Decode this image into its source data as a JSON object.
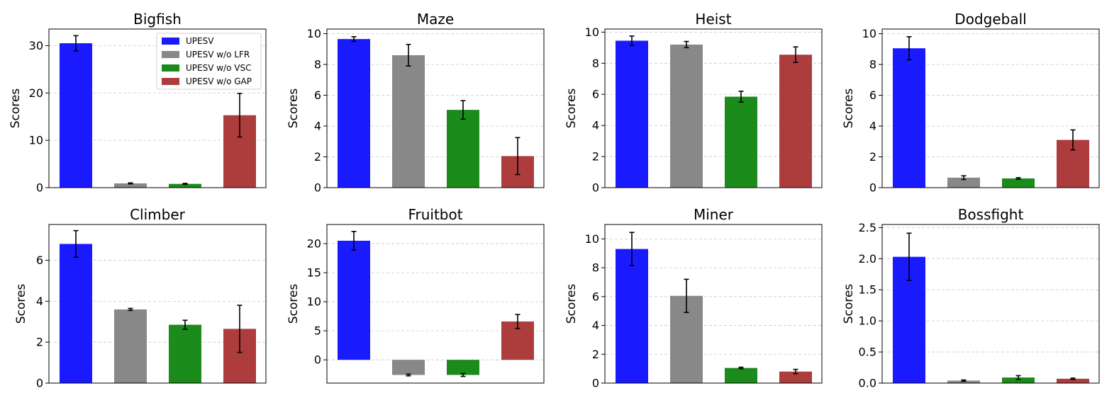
{
  "colors": {
    "upesv": "#1a1aff",
    "no_lfr": "#888888",
    "no_vsc": "#1b8b1b",
    "no_gap": "#ad3c3c",
    "grid": "#c8c8c8",
    "axis": "#000000"
  },
  "legend": {
    "entries": [
      "UPESV",
      "UPESV w/o LFR",
      "UPESV w/o VSC",
      "UPESV w/o GAP"
    ],
    "placement": "top-right",
    "panel": "Bigfish"
  },
  "chart_data": [
    {
      "type": "bar",
      "title": "Bigfish",
      "ylabel": "Scores",
      "series_names": [
        "UPESV",
        "UPESV w/o LFR",
        "UPESV w/o VSC",
        "UPESV w/o GAP"
      ],
      "values": [
        30.5,
        0.9,
        0.8,
        15.3
      ],
      "errors": [
        1.6,
        0.1,
        0.1,
        4.6
      ],
      "ylim": [
        0,
        33.5
      ],
      "yticks": [
        0,
        10,
        20,
        30
      ],
      "ytick_labels": [
        "0",
        "10",
        "20",
        "30"
      ]
    },
    {
      "type": "bar",
      "title": "Maze",
      "ylabel": "Scores",
      "series_names": [
        "UPESV",
        "UPESV w/o LFR",
        "UPESV w/o VSC",
        "UPESV w/o GAP"
      ],
      "values": [
        9.65,
        8.6,
        5.05,
        2.05
      ],
      "errors": [
        0.15,
        0.7,
        0.6,
        1.2
      ],
      "ylim": [
        0,
        10.3
      ],
      "yticks": [
        0,
        2,
        4,
        6,
        8,
        10
      ],
      "ytick_labels": [
        "0",
        "2",
        "4",
        "6",
        "8",
        "10"
      ]
    },
    {
      "type": "bar",
      "title": "Heist",
      "ylabel": "Scores",
      "series_names": [
        "UPESV",
        "UPESV w/o LFR",
        "UPESV w/o VSC",
        "UPESV w/o GAP"
      ],
      "values": [
        9.45,
        9.2,
        5.85,
        8.55
      ],
      "errors": [
        0.3,
        0.2,
        0.35,
        0.5
      ],
      "ylim": [
        0,
        10.2
      ],
      "yticks": [
        0,
        2,
        4,
        6,
        8,
        10
      ],
      "ytick_labels": [
        "0",
        "2",
        "4",
        "6",
        "8",
        "10"
      ]
    },
    {
      "type": "bar",
      "title": "Dodgeball",
      "ylabel": "Scores",
      "series_names": [
        "UPESV",
        "UPESV w/o LFR",
        "UPESV w/o VSC",
        "UPESV w/o GAP"
      ],
      "values": [
        9.05,
        0.65,
        0.6,
        3.1
      ],
      "errors": [
        0.75,
        0.12,
        0.05,
        0.65
      ],
      "ylim": [
        0,
        10.3
      ],
      "yticks": [
        0,
        2,
        4,
        6,
        8,
        10
      ],
      "ytick_labels": [
        "0",
        "2",
        "4",
        "6",
        "8",
        "10"
      ]
    },
    {
      "type": "bar",
      "title": "Climber",
      "ylabel": "Scores",
      "series_names": [
        "UPESV",
        "UPESV w/o LFR",
        "UPESV w/o VSC",
        "UPESV w/o GAP"
      ],
      "values": [
        6.8,
        3.6,
        2.85,
        2.65
      ],
      "errors": [
        0.65,
        0.05,
        0.22,
        1.15
      ],
      "ylim": [
        0,
        7.75
      ],
      "yticks": [
        0,
        2,
        4,
        6
      ],
      "ytick_labels": [
        "0",
        "2",
        "4",
        "6"
      ]
    },
    {
      "type": "bar",
      "title": "Fruitbot",
      "ylabel": "Scores",
      "series_names": [
        "UPESV",
        "UPESV w/o LFR",
        "UPESV w/o VSC",
        "UPESV w/o GAP"
      ],
      "values": [
        20.5,
        -2.6,
        -2.6,
        6.6
      ],
      "errors": [
        1.6,
        0.15,
        0.25,
        1.2
      ],
      "ylim": [
        -4.0,
        23.3
      ],
      "yticks": [
        0,
        5,
        10,
        15,
        20
      ],
      "ytick_labels": [
        "0",
        "5",
        "10",
        "15",
        "20"
      ]
    },
    {
      "type": "bar",
      "title": "Miner",
      "ylabel": "Scores",
      "series_names": [
        "UPESV",
        "UPESV w/o LFR",
        "UPESV w/o VSC",
        "UPESV w/o GAP"
      ],
      "values": [
        9.3,
        6.05,
        1.05,
        0.8
      ],
      "errors": [
        1.15,
        1.15,
        0.05,
        0.15
      ],
      "ylim": [
        0,
        11.0
      ],
      "yticks": [
        0,
        2,
        4,
        6,
        8,
        10
      ],
      "ytick_labels": [
        "0",
        "2",
        "4",
        "6",
        "8",
        "10"
      ]
    },
    {
      "type": "bar",
      "title": "Bossfight",
      "ylabel": "Scores",
      "series_names": [
        "UPESV",
        "UPESV w/o LFR",
        "UPESV w/o VSC",
        "UPESV w/o GAP"
      ],
      "values": [
        2.03,
        0.04,
        0.09,
        0.07
      ],
      "errors": [
        0.38,
        0.01,
        0.03,
        0.01
      ],
      "ylim": [
        0,
        2.55
      ],
      "yticks": [
        0,
        0.5,
        1.0,
        1.5,
        2.0,
        2.5
      ],
      "ytick_labels": [
        "0.0",
        "0.5",
        "1.0",
        "1.5",
        "2.0",
        "2.5"
      ]
    }
  ]
}
